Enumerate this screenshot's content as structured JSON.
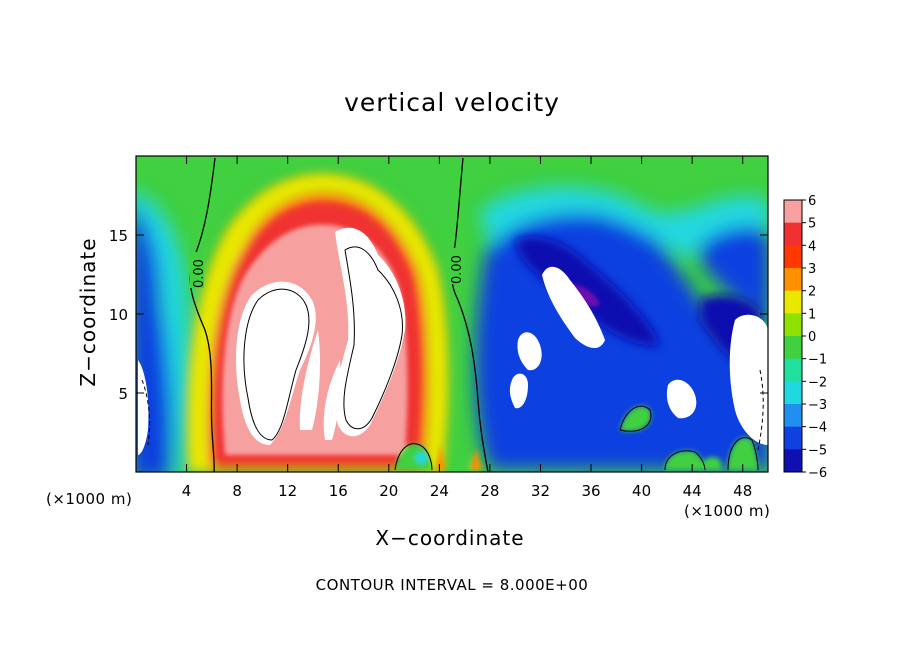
{
  "chart_data": {
    "type": "heatmap",
    "title": "vertical velocity",
    "xlabel": "X−coordinate",
    "ylabel": "Z−coordinate",
    "x_unit_label": "(×1000 m)",
    "y_unit_label": "(×1000 m)",
    "x_range": [
      0,
      50
    ],
    "y_range": [
      0,
      20
    ],
    "x_ticks": [
      4,
      8,
      12,
      16,
      20,
      24,
      28,
      32,
      36,
      40,
      44,
      48
    ],
    "y_ticks": [
      5,
      10,
      15
    ],
    "colorbar": {
      "levels": [
        6,
        5,
        4,
        3,
        2,
        1,
        0,
        -1,
        -2,
        -3,
        -4,
        -5,
        -6
      ],
      "level_labels": [
        "6",
        "5",
        "4",
        "3",
        "2",
        "1",
        "0",
        "−1",
        "−2",
        "−3",
        "−4",
        "−5",
        "−6"
      ],
      "colors": [
        "#f7a0a0",
        "#f03030",
        "#ff3800",
        "#ff9000",
        "#e8e800",
        "#90e000",
        "#40d040",
        "#20e0a0",
        "#20d8e0",
        "#2090f0",
        "#1040e0",
        "#1010b0",
        "#7010b0"
      ],
      "above_range_color": "#ffffff"
    },
    "contour_labels": [
      "0.00",
      "0.00"
    ],
    "contour_interval_text": "CONTOUR INTERVAL = 8.000E+00"
  }
}
